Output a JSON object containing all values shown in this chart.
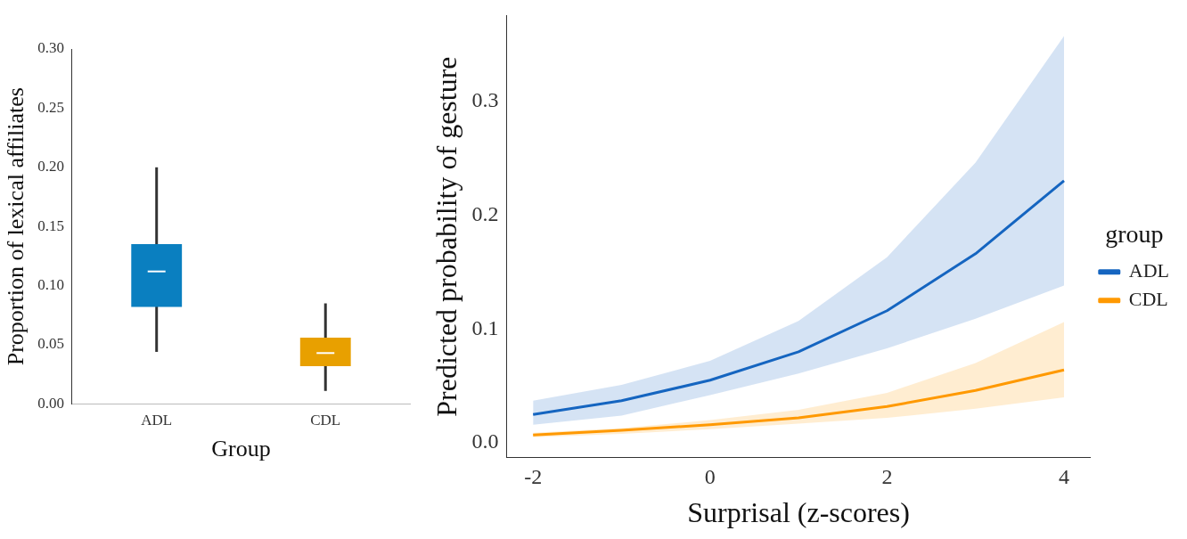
{
  "chart_data": [
    {
      "type": "box",
      "xlabel": "Group",
      "ylabel": "Proportion of lexical affiliates",
      "categories": [
        "ADL",
        "CDL"
      ],
      "colors": [
        "#0a7fc0",
        "#e8a000"
      ],
      "boxes": [
        {
          "low": 0.044,
          "q1": 0.082,
          "median": 0.112,
          "q3": 0.135,
          "high": 0.2
        },
        {
          "low": 0.011,
          "q1": 0.032,
          "median": 0.043,
          "q3": 0.056,
          "high": 0.085
        }
      ],
      "ylim": [
        0,
        0.3
      ],
      "yticks": [
        {
          "value": 0,
          "label": "0.00"
        },
        {
          "value": 0.05,
          "label": "0.05"
        },
        {
          "value": 0.1,
          "label": "0.10"
        },
        {
          "value": 0.15,
          "label": "0.15"
        },
        {
          "value": 0.2,
          "label": "0.20"
        },
        {
          "value": 0.25,
          "label": "0.25"
        },
        {
          "value": 0.3,
          "label": "0.30"
        }
      ],
      "grid": false
    },
    {
      "type": "line",
      "xlabel": "Surprisal (z-scores)",
      "ylabel": "Predicted probability of gesture",
      "legend_title": "group",
      "legend": "right",
      "grid": false,
      "x": [
        -2,
        -1,
        0,
        1,
        2,
        3,
        4
      ],
      "series": [
        {
          "name": "ADL",
          "color": "#1565c0",
          "values": [
            0.025,
            0.037,
            0.055,
            0.08,
            0.116,
            0.166,
            0.23
          ],
          "lower": [
            0.016,
            0.024,
            0.042,
            0.061,
            0.083,
            0.109,
            0.138
          ],
          "upper": [
            0.037,
            0.051,
            0.072,
            0.107,
            0.163,
            0.246,
            0.357
          ]
        },
        {
          "name": "CDL",
          "color": "#ff9900",
          "values": [
            0.007,
            0.011,
            0.016,
            0.022,
            0.032,
            0.046,
            0.064
          ],
          "lower": [
            0.005,
            0.008,
            0.012,
            0.017,
            0.022,
            0.03,
            0.04
          ],
          "upper": [
            0.009,
            0.013,
            0.02,
            0.029,
            0.044,
            0.07,
            0.106
          ]
        }
      ],
      "xlim": [
        -2.3,
        4.3
      ],
      "xticks": [
        -2,
        0,
        2,
        4
      ],
      "ylim": [
        -0.013,
        0.375
      ],
      "yticks": [
        {
          "value": 0,
          "label": "0.0"
        },
        {
          "value": 0.1,
          "label": "0.1"
        },
        {
          "value": 0.2,
          "label": "0.2"
        },
        {
          "value": 0.3,
          "label": "0.3"
        }
      ]
    }
  ]
}
